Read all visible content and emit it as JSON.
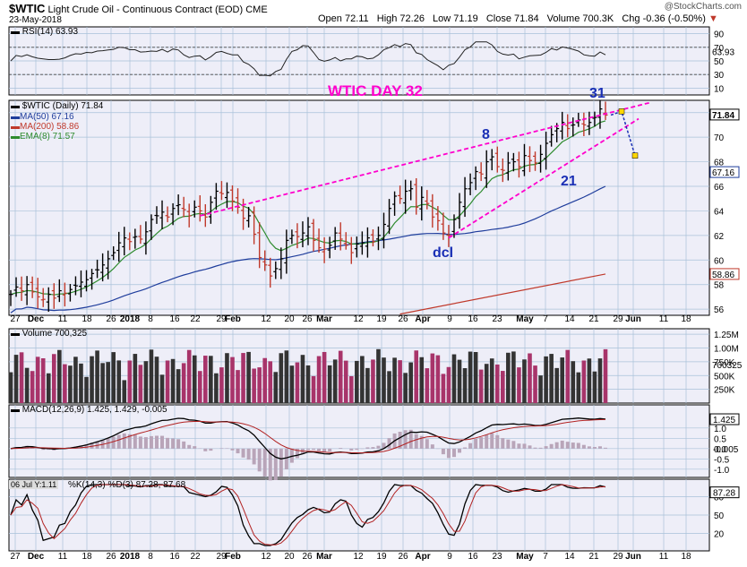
{
  "header": {
    "symbol": "$WTIC",
    "description": "Light Crude Oil - Continuous Contract (EOD)",
    "exchange": "CME",
    "date": "23-May-2018",
    "open": "Open 72.11",
    "high": "High 72.26",
    "low": "Low 71.19",
    "close": "Close 71.84",
    "volume": "Volume 700.3K",
    "change": "Chg -0.36 (-0.50%)",
    "brand": "@StockCharts.com"
  },
  "colors": {
    "background": "#eeeef8",
    "grid": "#a9c1d9",
    "up": "#000000",
    "down": "#c0392b",
    "ma50": "#1f3d9c",
    "ma200": "#c0392b",
    "ema8": "#2e8b2e",
    "trend": "#ff00cc",
    "annotation_pink": "#ff00cc",
    "annotation_blue": "#1a2fb5"
  },
  "panels": {
    "rsi": {
      "label": "RSI(14) 63.93",
      "ticks": [
        "90",
        "70",
        "50",
        "30",
        "10"
      ],
      "last": "63.93"
    },
    "price": {
      "label": "$WTIC (Daily) 71.84",
      "legend": [
        "MA(50) 67.16",
        "MA(200) 58.86",
        "EMA(8) 71.57"
      ],
      "ticks": [
        "72",
        "70",
        "68",
        "66",
        "64",
        "62",
        "60",
        "58",
        "56"
      ],
      "last_boxes": [
        "71.84",
        "67.16",
        "58.86"
      ]
    },
    "volume": {
      "label": "Volume 700,325",
      "ticks": [
        "1.25M",
        "1.00M",
        "750K",
        "500K",
        "250K"
      ],
      "last": "700325"
    },
    "macd": {
      "label": "MACD(12,26,9) 1.425, 1.429, -0.005",
      "ticks": [
        "1.0",
        "0.5",
        "0.0",
        "-0.5",
        "-1.0"
      ],
      "last": [
        "1.425",
        "-0.005"
      ]
    },
    "stoch": {
      "label": "%K(14,3) %D(3) 87.28, 87.68",
      "tag": "06 Jul Y:1.11",
      "ticks": [
        "80",
        "50",
        "20"
      ],
      "last": "87.28"
    }
  },
  "annotations": {
    "title": "WTIC DAY 32",
    "wave8": "8",
    "wave21": "21",
    "wave31": "31",
    "dcl": "dcl"
  },
  "x_axis": [
    "27",
    "Dec",
    "11",
    "18",
    "26",
    "2018",
    "8",
    "16",
    "22",
    "29",
    "Feb",
    "12",
    "20",
    "26",
    "Mar",
    "12",
    "19",
    "26",
    "Apr",
    "9",
    "16",
    "23",
    "May",
    "7",
    "14",
    "21",
    "29",
    "Jun",
    "11",
    "18"
  ],
  "chart_data": {
    "type": "candlestick",
    "title": "$WTIC Light Crude Oil - Continuous Contract (EOD)",
    "period": "Daily",
    "last_date": "23-May-2018",
    "ohlc_last": {
      "open": 72.11,
      "high": 72.26,
      "low": 71.19,
      "close": 71.84
    },
    "ylim": [
      55.5,
      73
    ],
    "closes_approx": [
      57.2,
      57.8,
      57.5,
      58.0,
      57.4,
      57.0,
      56.8,
      57.2,
      56.9,
      57.5,
      57.3,
      57.6,
      57.9,
      58.2,
      58.4,
      58.9,
      59.2,
      59.6,
      60.1,
      60.6,
      61.4,
      61.8,
      61.5,
      61.9,
      61.7,
      62.3,
      63.3,
      63.6,
      63.9,
      63.5,
      64.2,
      64.5,
      64.1,
      63.6,
      64.3,
      64.0,
      63.5,
      64.7,
      65.6,
      65.4,
      65.5,
      64.8,
      64.3,
      63.4,
      63.6,
      62.1,
      60.2,
      59.6,
      58.7,
      59.3,
      60.1,
      61.6,
      62.0,
      61.9,
      62.2,
      62.7,
      61.6,
      61.0,
      60.9,
      61.2,
      62.2,
      61.7,
      61.2,
      60.6,
      61.3,
      61.4,
      61.8,
      61.5,
      62.0,
      62.9,
      64.2,
      65.2,
      65.0,
      65.6,
      65.8,
      64.3,
      65.1,
      64.6,
      63.5,
      63.2,
      62.2,
      62.0,
      63.3,
      64.7,
      65.8,
      66.3,
      67.2,
      67.0,
      68.0,
      68.4,
      67.6,
      67.3,
      67.9,
      68.0,
      67.6,
      68.5,
      68.1,
      67.9,
      68.6,
      69.5,
      70.2,
      70.7,
      71.2,
      70.7,
      71.0,
      71.4,
      71.0,
      71.2,
      71.6,
      72.3,
      71.8
    ],
    "series": [
      {
        "name": "MA(50)",
        "last": 67.16
      },
      {
        "name": "MA(200)",
        "last": 58.86
      },
      {
        "name": "EMA(8)",
        "last": 71.57
      }
    ],
    "indicators": {
      "RSI(14)": 63.93,
      "Volume": 700325,
      "MACD": [
        1.425,
        1.429,
        -0.005
      ],
      "Stoch": [
        87.28,
        87.68
      ]
    },
    "projection": {
      "from": 71.8,
      "mid": 72.1,
      "to": 68.5
    }
  }
}
